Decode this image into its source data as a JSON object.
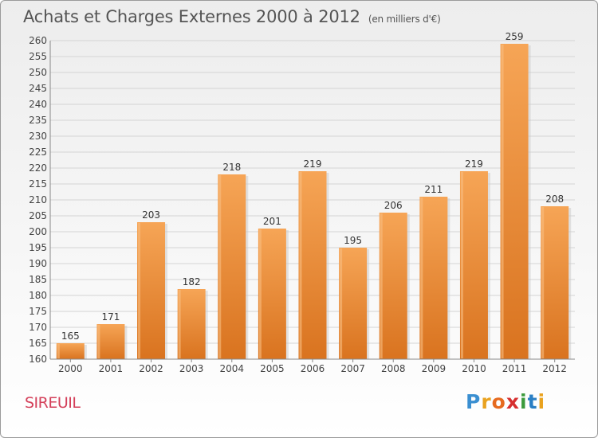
{
  "title": "Achats et Charges Externes 2000 à 2012",
  "subtitle": "(en milliers d'€)",
  "location": "SIREUIL",
  "logo": {
    "letters": [
      "P",
      "r",
      "o",
      "x",
      "i",
      "t",
      "i"
    ],
    "colors": [
      "#3a8fd1",
      "#e9a21f",
      "#e66a1e",
      "#d62f2f",
      "#3c9a3c",
      "#2a7fc4",
      "#e9a21f"
    ]
  },
  "colors": {
    "bar": "#f0903a",
    "bar_dark": "#d9731f",
    "bar_light": "#f7aa5c",
    "location": "#d4405a"
  },
  "chart_data": {
    "type": "bar",
    "title": "Achats et Charges Externes 2000 à 2012",
    "subtitle": "(en milliers d'€)",
    "categories": [
      "2000",
      "2001",
      "2002",
      "2003",
      "2004",
      "2005",
      "2006",
      "2007",
      "2008",
      "2009",
      "2010",
      "2011",
      "2012"
    ],
    "values": [
      165,
      171,
      203,
      182,
      218,
      201,
      219,
      195,
      206,
      211,
      219,
      259,
      208
    ],
    "ylim": [
      160,
      260
    ],
    "yticks": [
      160,
      165,
      170,
      175,
      180,
      185,
      190,
      195,
      200,
      205,
      210,
      215,
      220,
      225,
      230,
      235,
      240,
      245,
      250,
      255,
      260
    ],
    "grid": true
  }
}
